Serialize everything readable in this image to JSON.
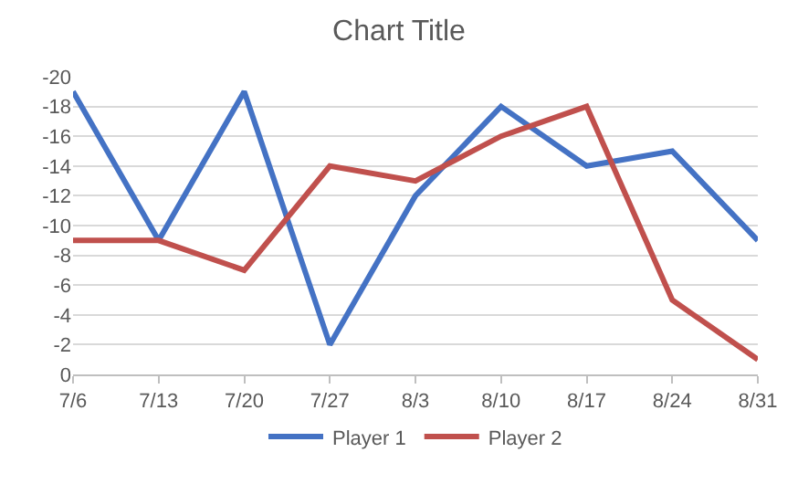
{
  "chart_data": {
    "type": "line",
    "title": "Chart Title",
    "categories": [
      "7/6",
      "7/13",
      "7/20",
      "7/27",
      "8/3",
      "8/10",
      "8/17",
      "8/24",
      "8/31"
    ],
    "series": [
      {
        "name": "Player 1",
        "color": "#4472c4",
        "values": [
          -19,
          -9,
          -19,
          -2,
          -12,
          -18,
          -14,
          -15,
          -9
        ]
      },
      {
        "name": "Player 2",
        "color": "#c0504d",
        "values": [
          -9,
          -9,
          -7,
          -14,
          -13,
          -16,
          -18,
          -5,
          -1
        ]
      }
    ],
    "ylim": [
      0,
      -20
    ],
    "yticks": [
      0,
      -2,
      -4,
      -6,
      -8,
      -10,
      -12,
      -14,
      -16,
      -18,
      -20
    ],
    "grid": "y",
    "legend": "bottom",
    "marker": "none",
    "line_style": "solid"
  }
}
